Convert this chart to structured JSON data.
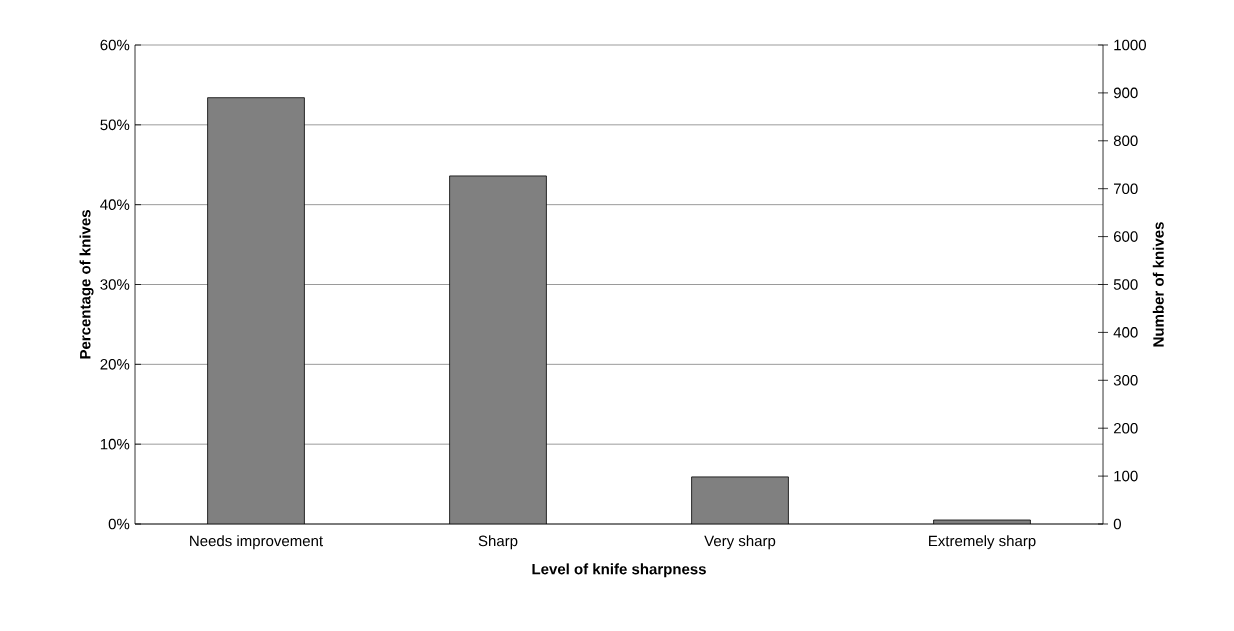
{
  "chart_data": {
    "type": "bar",
    "xlabel": "Level of knife sharpness",
    "ylabel": "Percentage of knives",
    "y2label": "Number of knives",
    "categories": [
      "Needs improvement",
      "Sharp",
      "Very sharp",
      "Extremely sharp"
    ],
    "values": [
      53.4,
      43.6,
      5.9,
      0.5
    ],
    "color": "#808080",
    "ylim": [
      0,
      60
    ],
    "yticks": [
      {
        "value": 0,
        "label": "0%"
      },
      {
        "value": 10,
        "label": "10%"
      },
      {
        "value": 20,
        "label": "20%"
      },
      {
        "value": 30,
        "label": "30%"
      },
      {
        "value": 40,
        "label": "40%"
      },
      {
        "value": 50,
        "label": "50%"
      },
      {
        "value": 60,
        "label": "60%"
      }
    ],
    "y2lim": [
      0,
      1000
    ],
    "y2ticks": [
      0,
      100,
      200,
      300,
      400,
      500,
      600,
      700,
      800,
      900,
      1000
    ],
    "grid": "y"
  }
}
